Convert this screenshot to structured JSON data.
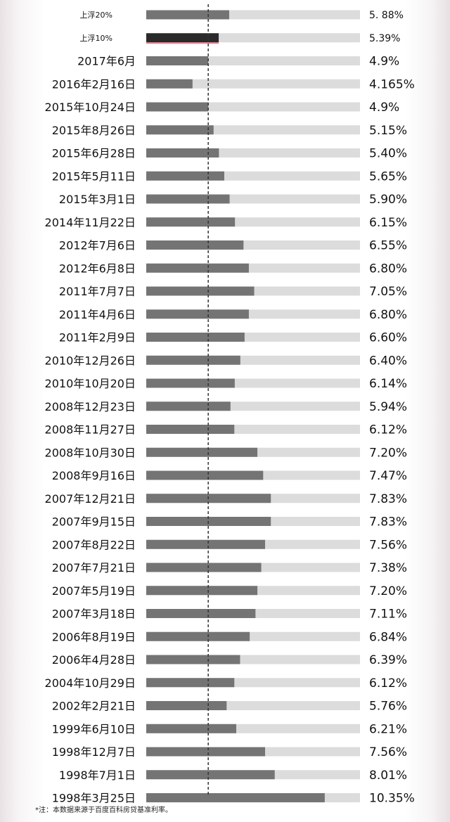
{
  "chart_data": {
    "type": "bar",
    "orientation": "horizontal",
    "categories": [
      "上浮20%",
      "上浮10%",
      "2017年6月",
      "2016年2月16日",
      "2015年10月24日",
      "2015年8月26日",
      "2015年6月28日",
      "2015年5月11日",
      "2015年3月1日",
      "2014年11月22日",
      "2012年7月6日",
      "2012年6月8日",
      "2011年7月7日",
      "2011年4月6日",
      "2011年2月9日",
      "2010年12月26日",
      "2010年10月20日",
      "2008年12月23日",
      "2008年11月27日",
      "2008年10月30日",
      "2008年9月16日",
      "2007年12月21日",
      "2007年9月15日",
      "2007年8月22日",
      "2007年7月21日",
      "2007年5月19日",
      "2007年3月18日",
      "2006年8月19日",
      "2006年4月28日",
      "2004年10月29日",
      "2002年2月21日",
      "1999年6月10日",
      "1998年12月7日",
      "1998年7月1日",
      "1998年3月25日"
    ],
    "values": [
      5.88,
      5.39,
      4.9,
      4.165,
      4.9,
      5.15,
      5.4,
      5.65,
      5.9,
      6.15,
      6.55,
      6.8,
      7.05,
      6.8,
      6.6,
      6.4,
      6.14,
      5.94,
      6.12,
      7.2,
      7.47,
      7.83,
      7.83,
      7.56,
      7.38,
      7.2,
      7.11,
      6.84,
      6.39,
      6.12,
      5.76,
      6.21,
      7.56,
      8.01,
      10.35
    ],
    "value_labels": [
      "5. 88%",
      "5.39%",
      "4.9%",
      "4.165%",
      "4.9%",
      "5.15%",
      "5.40%",
      "5.65%",
      "5.90%",
      "6.15%",
      "6.55%",
      "6.80%",
      "7.05%",
      "6.80%",
      "6.60%",
      "6.40%",
      "6.14%",
      "5.94%",
      "6.12%",
      "7.20%",
      "7.47%",
      "7.83%",
      "7.83%",
      "7.56%",
      "7.38%",
      "7.20%",
      "7.11%",
      "6.84%",
      "6.39%",
      "6.12%",
      "5.76%",
      "6.21%",
      "7.56%",
      "8.01%",
      "10.35%"
    ],
    "highlight_index": 1,
    "reference_line": 4.9,
    "xlim": [
      2.0,
      12.0
    ],
    "grid": false,
    "legend": "none",
    "title": "",
    "xlabel": "",
    "ylabel": ""
  },
  "colors": {
    "bar": "#747474",
    "bar_highlight": "#2a2a2a",
    "track": "#dcdcdc",
    "highlight_accent": "#f07d8c",
    "reference_line": "#333333"
  },
  "footnote": "*注：本数据来源于百度百科房贷基准利率。"
}
